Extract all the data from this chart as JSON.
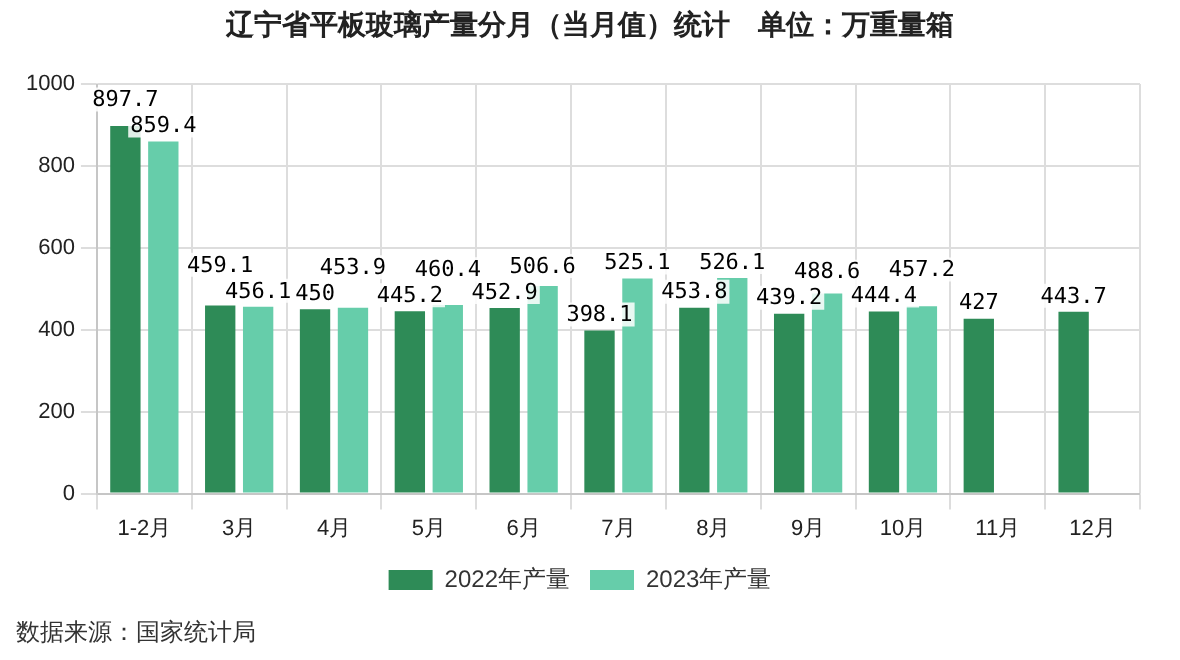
{
  "chart_data": {
    "type": "bar",
    "title": "辽宁省平板玻璃产量分月（当月值）统计　单位：万重量箱",
    "categories": [
      "1-2月",
      "3月",
      "4月",
      "5月",
      "6月",
      "7月",
      "8月",
      "9月",
      "10月",
      "11月",
      "12月"
    ],
    "series": [
      {
        "name": "2022年产量",
        "color": "#2e8b57",
        "values": [
          897.7,
          459.1,
          450,
          445.2,
          452.9,
          398.1,
          453.8,
          439.2,
          444.4,
          427,
          443.7
        ]
      },
      {
        "name": "2023年产量",
        "color": "#66cdaa",
        "values": [
          859.4,
          456.1,
          453.9,
          460.4,
          506.6,
          525.1,
          526.1,
          488.6,
          457.2,
          null,
          null
        ]
      }
    ],
    "ylim": [
      0,
      1000
    ],
    "yticks": [
      0,
      200,
      400,
      600,
      800,
      1000
    ],
    "grid": true,
    "legend": "bottom",
    "data_labels": true,
    "annotations": [
      "数据来源：国家统计局"
    ]
  }
}
